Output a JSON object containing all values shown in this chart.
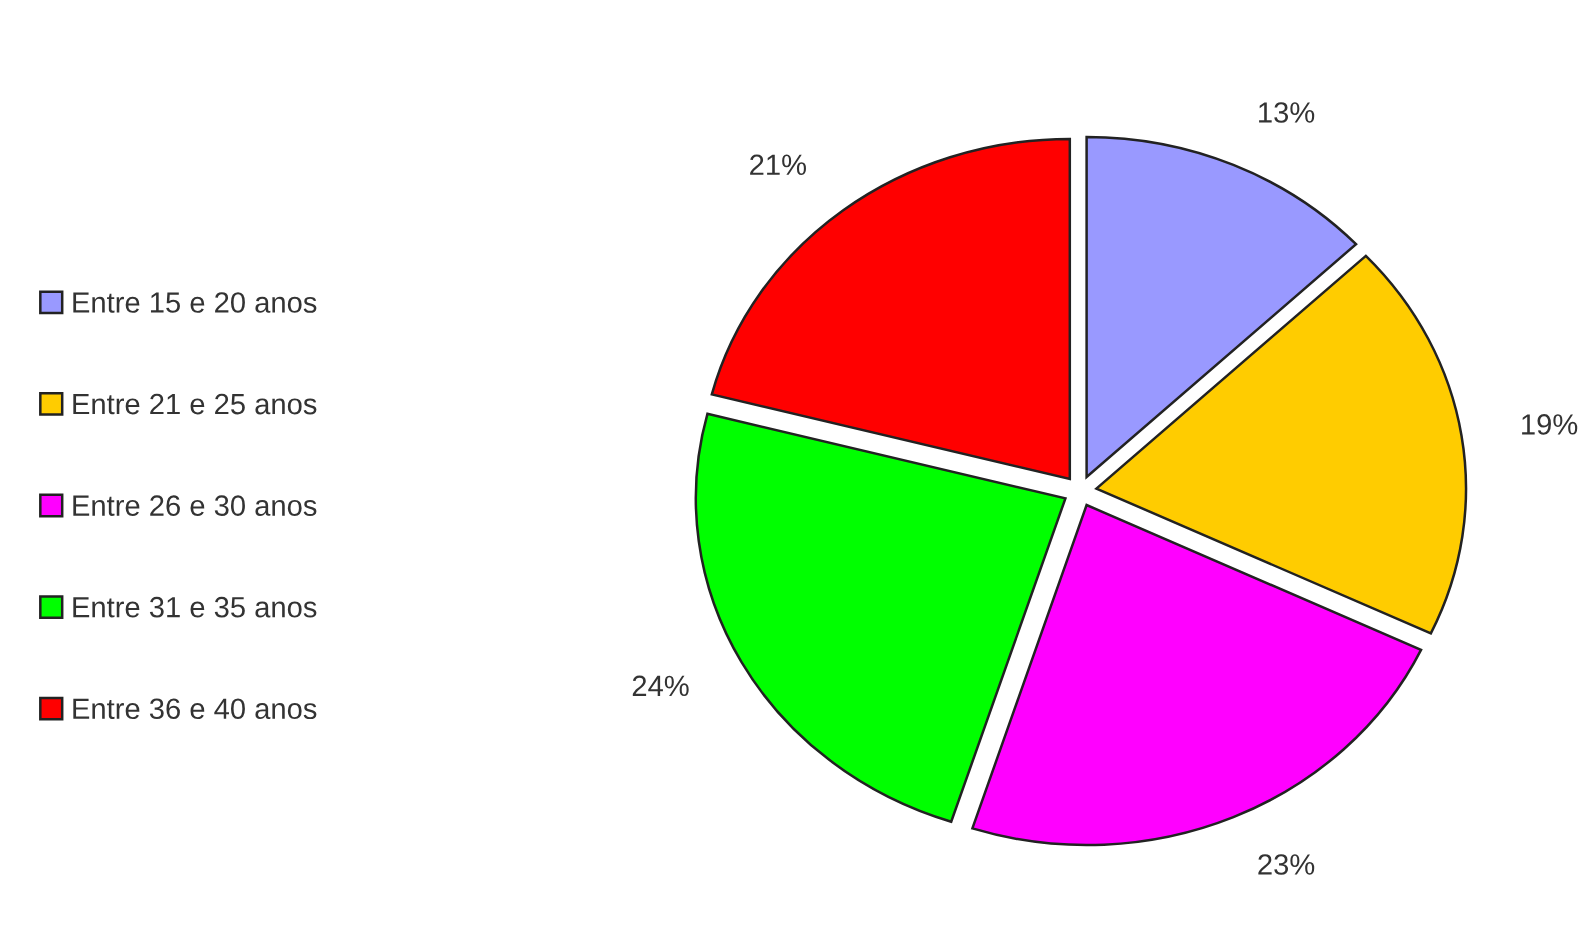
{
  "chart_data": {
    "type": "pie",
    "categories": [
      "Entre 15 e 20 anos",
      "Entre 21 e 25 anos",
      "Entre 26 e 30 anos",
      "Entre 31 e 35 anos",
      "Entre 36 e 40 anos"
    ],
    "values": [
      13,
      19,
      23,
      24,
      21
    ],
    "colors": [
      "#9999ff",
      "#ffcc00",
      "#ff00ff",
      "#00ff00",
      "#ff0000"
    ],
    "value_labels": [
      "13%",
      "19%",
      "23%",
      "24%",
      "21%"
    ],
    "legend": "left"
  }
}
